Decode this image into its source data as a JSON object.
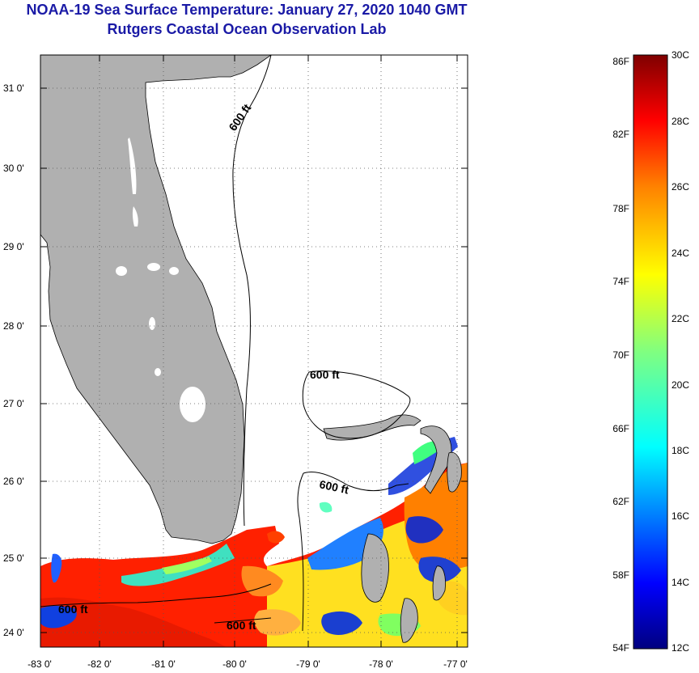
{
  "header": {
    "title": "NOAA-19 Sea Surface Temperature:  January 27, 2020 1040 GMT",
    "subtitle": "Rutgers Coastal Ocean Observation Lab"
  },
  "map": {
    "latitude_labels": [
      "31 0'",
      "30 0'",
      "29 0'",
      "28 0'",
      "27 0'",
      "26 0'",
      "25 0'",
      "24 0'"
    ],
    "longitude_labels": [
      "-83 0'",
      "-82 0'",
      "-81 0'",
      "-80 0'",
      "-79 0'",
      "-78 0'",
      "-77 0'"
    ],
    "contour_labels": [
      "600 ft",
      "600 ft",
      "600 ft",
      "600 ft",
      "600 ft"
    ],
    "land_color": "#b0b0b0",
    "no_data_color": "#ffffff"
  },
  "colorbar": {
    "fahrenheit_labels": [
      "86F",
      "82F",
      "78F",
      "74F",
      "70F",
      "66F",
      "62F",
      "58F",
      "54F"
    ],
    "celsius_labels": [
      "30C",
      "28C",
      "26C",
      "24C",
      "22C",
      "20C",
      "18C",
      "16C",
      "14C",
      "12C"
    ],
    "colors": [
      "#000080",
      "#0000ff",
      "#0080ff",
      "#00ffff",
      "#80ff80",
      "#ffff00",
      "#ff8000",
      "#ff0000",
      "#800000"
    ]
  }
}
